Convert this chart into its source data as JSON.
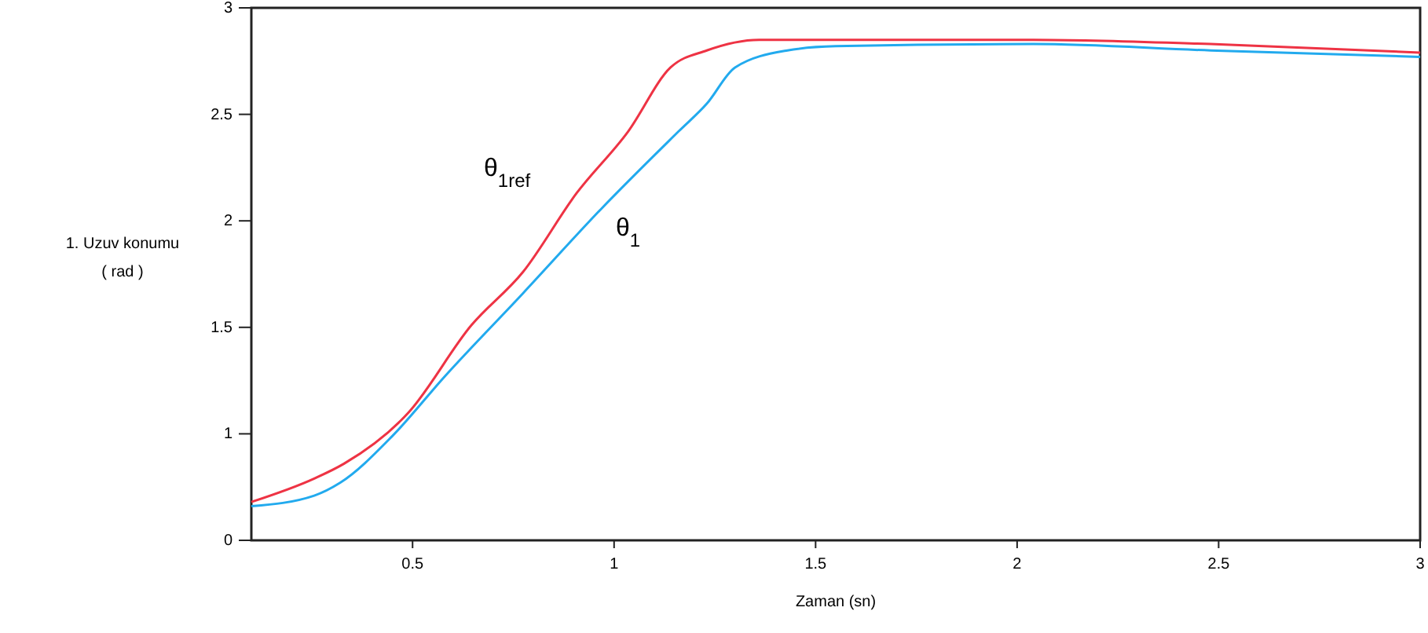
{
  "chart_data": {
    "type": "line",
    "xlabel": "Zaman (sn)",
    "ylabel": "1. Uzuv konumu\n( rad )",
    "xlim": [
      0.1,
      3
    ],
    "xticks": [
      0.5,
      1,
      1.5,
      2,
      2.5,
      3
    ],
    "ylim": [
      0.5,
      3
    ],
    "yticks": [
      {
        "value": 0.5,
        "label": "0"
      },
      1,
      1.5,
      2,
      2.5,
      3
    ],
    "grid": false,
    "marker": "none",
    "line_style": "solid",
    "series": [
      {
        "color": "#ee3344",
        "x": [
          0.1,
          0.256,
          0.33,
          0.49,
          0.646,
          0.774,
          0.907,
          1.035,
          1.14,
          1.23,
          1.36,
          2.04,
          2.48,
          3.0
        ],
        "values": [
          0.68,
          0.79,
          0.86,
          1.1,
          1.51,
          1.76,
          2.13,
          2.42,
          2.72,
          2.8,
          2.85,
          2.85,
          2.83,
          2.79
        ]
      },
      {
        "color": "#22aaee",
        "x": [
          0.1,
          0.256,
          0.32,
          0.45,
          0.58,
          0.774,
          0.97,
          1.16,
          1.23,
          1.3,
          1.43,
          1.55,
          2.04,
          2.48,
          3.0
        ],
        "values": [
          0.66,
          0.71,
          0.77,
          0.99,
          1.27,
          1.66,
          2.06,
          2.42,
          2.55,
          2.72,
          2.8,
          2.82,
          2.83,
          2.8,
          2.77
        ]
      }
    ],
    "annotations": [
      "θ$_{1ref}$",
      "θ$_{1}$"
    ]
  }
}
